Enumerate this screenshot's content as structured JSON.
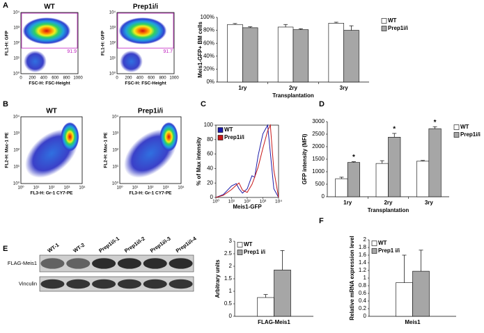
{
  "panels": {
    "letters": [
      "A",
      "B",
      "C",
      "D",
      "E",
      "F"
    ],
    "flow": [
      {
        "title": "WT",
        "ylabel": "FL1-H: GFP",
        "xlabel": "FSC-H: FSC-Height",
        "yticks": [
          "10⁰",
          "10¹",
          "10²",
          "10³",
          "10⁴"
        ],
        "xticks": [
          "0",
          "200",
          "400",
          "600",
          "800",
          "1000"
        ],
        "gate": "91.9"
      },
      {
        "title": "Prep1i/i",
        "ylabel": "FL1-H: GFP",
        "xlabel": "FSC-H: FSC-Height",
        "yticks": [
          "10⁰",
          "10¹",
          "10²",
          "10³",
          "10⁴"
        ],
        "xticks": [
          "0",
          "200",
          "400",
          "600",
          "800",
          "1000"
        ],
        "gate": "91.7"
      },
      {
        "title": "WT",
        "ylabel": "FL2-H: Mac-1 PE",
        "xlabel": "FL3-H: Gr-1 CY7-PE",
        "yticks": [
          "10⁰",
          "10¹",
          "10²",
          "10³",
          "10⁴"
        ],
        "xticks": [
          "10⁰",
          "10¹",
          "10²",
          "10³",
          "10⁴"
        ]
      },
      {
        "title": "Prep1i/i",
        "ylabel": "FL2-H: Mac-1 PE",
        "xlabel": "FL3-H: Gr-1 CY7-PE",
        "yticks": [
          "10⁰",
          "10¹",
          "10²",
          "10³",
          "10⁴"
        ],
        "xticks": [
          "10⁰",
          "10¹",
          "10²",
          "10³",
          "10⁴"
        ]
      }
    ],
    "western": {
      "lanes": [
        "WT-1",
        "WT-2",
        "Prep1i/i-1",
        "Prep1i/i-2",
        "Prep1i/i-3",
        "Prep1i/i-4"
      ],
      "rows": [
        "FLAG-Meis1",
        "Vinculin"
      ]
    }
  },
  "chart_data": [
    {
      "type": "bar",
      "ylabel": "Meis1-GFP+ BM cells",
      "xlabel": "Transplantation",
      "categories": [
        "1ry",
        "2ry",
        "3ry"
      ],
      "series": [
        {
          "name": "WT",
          "color": "#ffffff",
          "values": [
            89,
            85,
            91
          ],
          "errors": [
            1.5,
            4,
            1.5
          ]
        },
        {
          "name": "Prep1i/i",
          "color": "#a6a6a6",
          "values": [
            84,
            81,
            80
          ],
          "errors": [
            1.5,
            1.5,
            7
          ]
        }
      ],
      "ylim": [
        0,
        100
      ],
      "yticks": [
        {
          "value": 0,
          "label": "0%"
        },
        {
          "value": 20,
          "label": "20%"
        },
        {
          "value": 40,
          "label": "40%"
        },
        {
          "value": 60,
          "label": "60%"
        },
        {
          "value": 80,
          "label": "80%"
        },
        {
          "value": 100,
          "label": "100%"
        }
      ],
      "legend": "right"
    },
    {
      "type": "line",
      "ylabel": "% of Max intensity",
      "xlabel": "Meis1-GFP",
      "xscale": "log",
      "x": [
        1,
        3,
        10,
        20,
        30,
        50,
        100,
        200,
        300,
        500,
        1000,
        2000,
        3000,
        5000,
        10000
      ],
      "series": [
        {
          "name": "WT",
          "color": "#1a1aa8",
          "values": [
            0,
            4,
            16,
            19,
            12,
            6,
            12,
            30,
            28,
            58,
            88,
            100,
            62,
            12,
            0
          ]
        },
        {
          "name": "Prep1i/i",
          "color": "#c81818",
          "values": [
            0,
            3,
            11,
            17,
            20,
            10,
            7,
            18,
            28,
            42,
            68,
            92,
            100,
            38,
            0
          ]
        }
      ],
      "xlim": [
        1,
        10000
      ],
      "xticks": [
        {
          "value": 1,
          "label": "10⁰"
        },
        {
          "value": 10,
          "label": "10¹"
        },
        {
          "value": 100,
          "label": "10²"
        },
        {
          "value": 1000,
          "label": "10³"
        },
        {
          "value": 10000,
          "label": "10⁴"
        }
      ],
      "ylim": [
        0,
        100
      ],
      "yticks": [
        0,
        20,
        40,
        60,
        80,
        100
      ],
      "legend": "top-left"
    },
    {
      "type": "bar",
      "ylabel": "GFP intensity (MFI)",
      "xlabel": "Transplantation",
      "categories": [
        "1ry",
        "2ry",
        "3ry"
      ],
      "series": [
        {
          "name": "WT",
          "color": "#ffffff",
          "values": [
            720,
            1330,
            1420
          ],
          "errors": [
            60,
            110,
            30
          ]
        },
        {
          "name": "Prep1i/i",
          "color": "#a6a6a6",
          "values": [
            1370,
            2380,
            2720
          ],
          "errors": [
            30,
            150,
            80
          ]
        }
      ],
      "significance": [
        "*",
        "*",
        "*"
      ],
      "ylim": [
        0,
        3000
      ],
      "yticks": [
        0,
        500,
        1000,
        1500,
        2000,
        2500,
        3000
      ],
      "legend": "right"
    },
    {
      "type": "bar",
      "ylabel": "Arbitrary units",
      "categories": [
        "FLAG-Meis1"
      ],
      "series": [
        {
          "name": "WT",
          "color": "#ffffff",
          "values": [
            0.75
          ],
          "errors": [
            0.12
          ]
        },
        {
          "name": "Prep1 i/i",
          "color": "#a6a6a6",
          "values": [
            1.85
          ],
          "errors": [
            0.78
          ]
        }
      ],
      "ylim": [
        0,
        3
      ],
      "yticks": [
        0,
        0.5,
        1,
        1.5,
        2,
        2.5,
        3
      ],
      "legend": "top-left"
    },
    {
      "type": "bar",
      "ylabel": "Relative mRNA expression level",
      "categories": [
        "Meis1"
      ],
      "series": [
        {
          "name": "WT",
          "color": "#ffffff",
          "values": [
            0.88
          ],
          "errors": [
            0.72
          ]
        },
        {
          "name": "Prep1 i/i",
          "color": "#a6a6a6",
          "values": [
            1.18
          ],
          "errors": [
            0.55
          ]
        }
      ],
      "ylim": [
        0,
        2
      ],
      "yticks": [
        0,
        0.2,
        0.4,
        0.6,
        0.8,
        1,
        1.2,
        1.4,
        1.6,
        1.8,
        2
      ],
      "legend": "top-left"
    }
  ]
}
